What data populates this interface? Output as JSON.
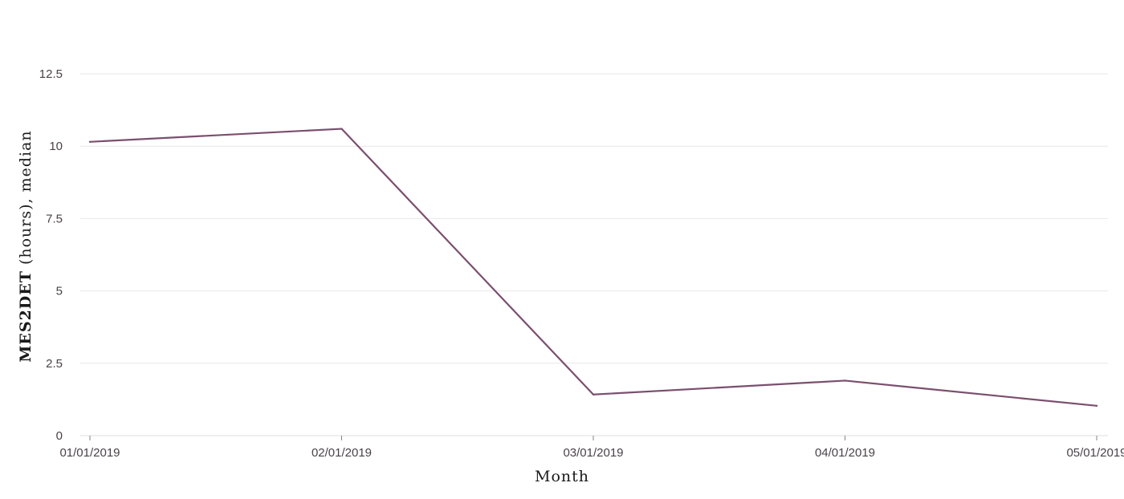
{
  "chart_data": {
    "type": "line",
    "x": [
      "01/01/2019",
      "02/01/2019",
      "03/01/2019",
      "04/01/2019",
      "05/01/2019"
    ],
    "series": [
      {
        "values": [
          10.15,
          10.6,
          1.42,
          1.9,
          1.03
        ]
      }
    ],
    "ylim": [
      0,
      12.5
    ],
    "yticks": [
      0,
      2.5,
      5,
      7.5,
      10,
      12.5
    ],
    "ytick_labels": [
      "0",
      "2.5",
      "5",
      "7.5",
      "10",
      "12.5"
    ],
    "xlabel": "Month",
    "ylabel_bold": "MES2DET",
    "ylabel_rest": " (hours), median",
    "grid": true,
    "line_color": "#7a4f6e",
    "grid_color": "#e9e6e8"
  }
}
